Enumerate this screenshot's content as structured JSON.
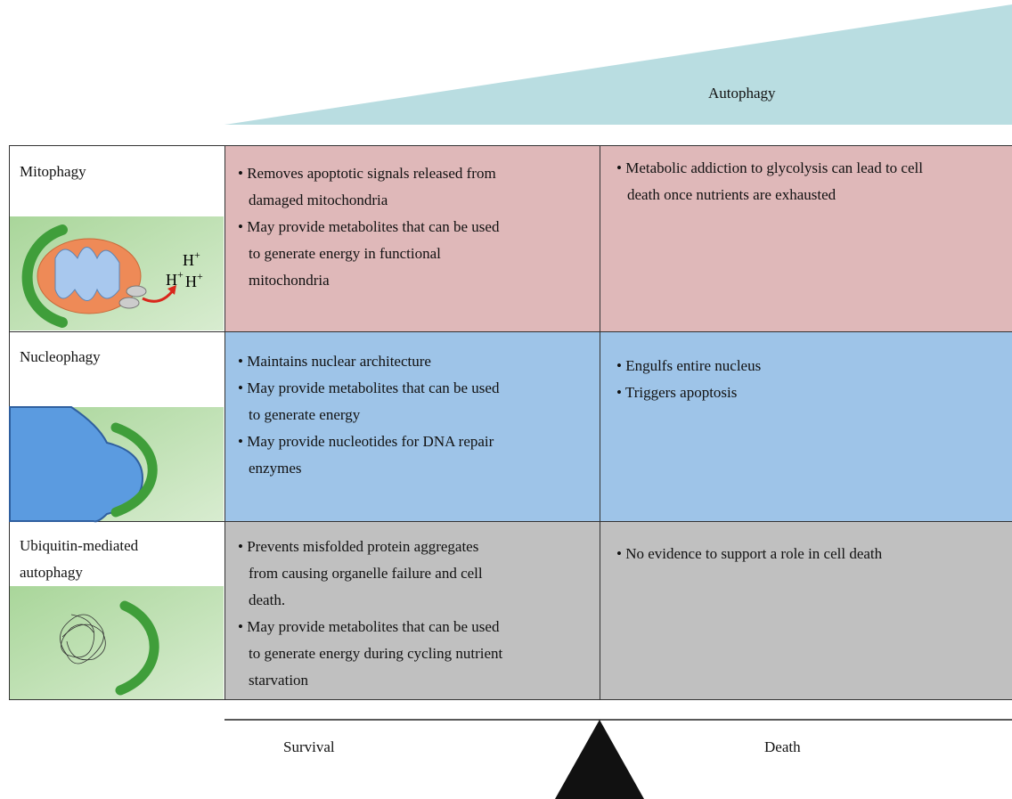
{
  "header": {
    "gradient_label": "Autophagy"
  },
  "rows": [
    {
      "label": "Mitophagy",
      "survival": [
        "Removes apoptotic signals released from damaged mitochondria",
        "May provide metabolites that can be used to generate energy in functional mitochondria"
      ],
      "death": [
        "Metabolic addiction to glycolysis can lead to cell death once nutrients are exhausted"
      ]
    },
    {
      "label": "Nucleophagy",
      "survival": [
        "Maintains nuclear architecture",
        "May provide metabolites that can be used to generate energy",
        "May provide nucleotides for DNA repair enzymes"
      ],
      "death": [
        "Engulfs entire nucleus",
        "Triggers apoptosis"
      ]
    },
    {
      "label": "Ubiquitin-mediated autophagy",
      "survival": [
        "Prevents misfolded protein aggregates from causing organelle failure and cell death.",
        "May provide metabolites that can be used to generate energy during cycling nutrient starvation"
      ],
      "death": [
        "No evidence to support a role in cell death"
      ]
    }
  ],
  "ions": [
    {
      "symbol": "H",
      "charge": "+"
    },
    {
      "symbol": "H",
      "charge": "+"
    },
    {
      "symbol": "H",
      "charge": "+"
    }
  ],
  "footer": {
    "left": "Survival",
    "right": "Death"
  }
}
